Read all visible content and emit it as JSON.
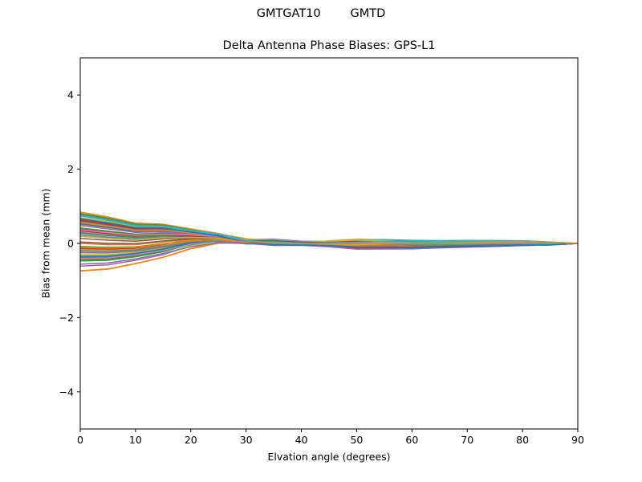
{
  "figure": {
    "suptitle": "GMTGAT10        GMTD",
    "title": "Delta Antenna Phase Biases: GPS-L1",
    "xlabel": "Elvation angle (degrees)",
    "ylabel": "Bias from mean (mm)"
  },
  "chart_data": {
    "type": "line",
    "title": "Delta Antenna Phase Biases: GPS-L1",
    "suptitle": "GMTGAT10        GMTD",
    "xlabel": "Elvation angle (degrees)",
    "ylabel": "Bias from mean (mm)",
    "xlim": [
      0,
      90
    ],
    "ylim": [
      -5,
      5
    ],
    "xticks": [
      0,
      10,
      20,
      30,
      40,
      50,
      60,
      70,
      80,
      90
    ],
    "yticks": [
      -4,
      -2,
      0,
      2,
      4
    ],
    "grid": false,
    "legend": "none",
    "series_count_estimate": 72,
    "note": "Many overlapping thin lines (matplotlib default tab10 color cycle), one per azimuth/satellite bin; all converge to 0 at 90 degrees. Envelope values estimated from pixels.",
    "x": [
      0,
      5,
      10,
      15,
      20,
      25,
      30,
      35,
      40,
      45,
      50,
      55,
      60,
      65,
      70,
      75,
      80,
      85,
      90
    ],
    "envelope": {
      "upper": [
        0.85,
        0.72,
        0.55,
        0.52,
        0.5,
        0.45,
        0.33,
        0.2,
        0.07,
        0.08,
        0.14,
        0.15,
        0.12,
        0.1,
        0.1,
        0.09,
        0.08,
        0.04,
        0.0
      ],
      "lower": [
        -0.75,
        -0.7,
        -0.55,
        -0.38,
        -0.25,
        -0.17,
        -0.22,
        -0.15,
        -0.07,
        -0.1,
        -0.17,
        -0.17,
        -0.17,
        -0.14,
        -0.12,
        -0.1,
        -0.07,
        -0.05,
        0.0
      ]
    },
    "colors": [
      "#1f77b4",
      "#ff7f0e",
      "#2ca02c",
      "#d62728",
      "#9467bd",
      "#8c564b",
      "#e377c2",
      "#7f7f7f",
      "#bcbd22",
      "#17becf"
    ]
  }
}
